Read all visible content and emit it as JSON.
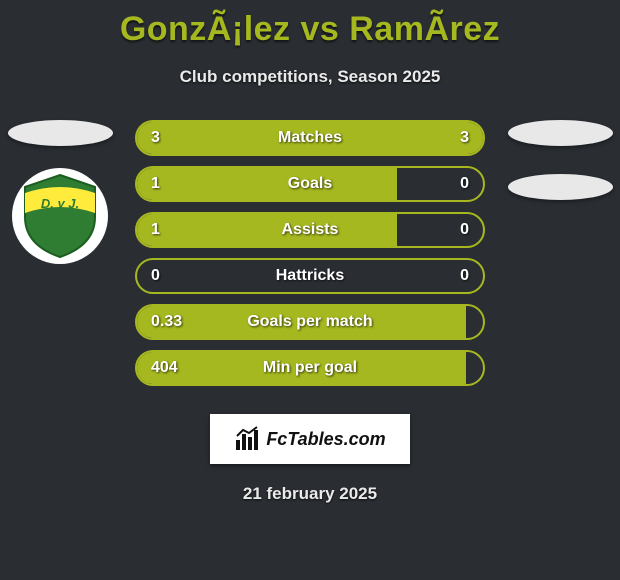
{
  "header": {
    "title": "GonzÃ¡lez vs RamÃ­rez",
    "subtitle": "Club competitions, Season 2025"
  },
  "colors": {
    "accent": "#a6b81f",
    "bg": "#2a2e33",
    "text": "#ffffff",
    "shadow_ellipse": "#e8e8e8"
  },
  "leftClub": {
    "shield_colors": {
      "outer": "#2e7d32",
      "band": "#ffeb3b",
      "text": "#2e7d32"
    },
    "shield_text": "D. y J."
  },
  "stats": {
    "rows": [
      {
        "label": "Matches",
        "left": "3",
        "right": "3",
        "leftPct": 50,
        "rightPct": 50
      },
      {
        "label": "Goals",
        "left": "1",
        "right": "0",
        "leftPct": 75,
        "rightPct": 0
      },
      {
        "label": "Assists",
        "left": "1",
        "right": "0",
        "leftPct": 75,
        "rightPct": 0
      },
      {
        "label": "Hattricks",
        "left": "0",
        "right": "0",
        "leftPct": 0,
        "rightPct": 0
      },
      {
        "label": "Goals per match",
        "left": "0.33",
        "right": "",
        "leftPct": 95,
        "rightPct": 0
      },
      {
        "label": "Min per goal",
        "left": "404",
        "right": "",
        "leftPct": 95,
        "rightPct": 0
      }
    ]
  },
  "brand": {
    "text": "FcTables.com"
  },
  "footer": {
    "date": "21 february 2025"
  }
}
